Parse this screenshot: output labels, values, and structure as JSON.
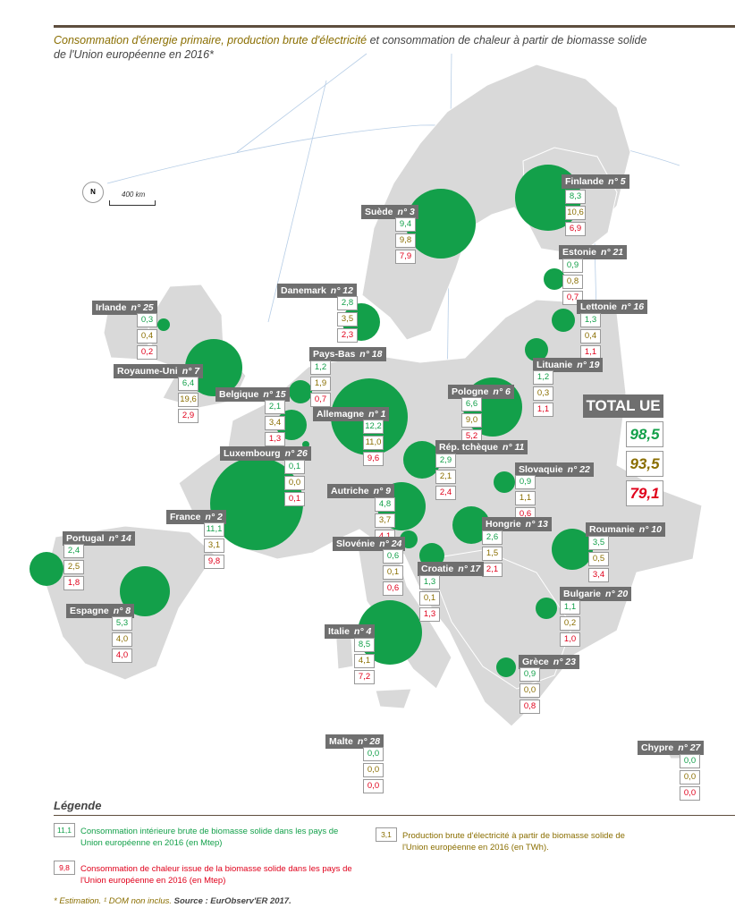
{
  "title": {
    "part1": "Consommation d'énergie primaire, production brute d'électricité",
    "part2": " et consommation de chaleur à partir de biomasse solide",
    "part3": "de l'Union européenne en 2016*"
  },
  "map": {
    "scale_label": "400 km",
    "north_label": "N"
  },
  "countries": [
    {
      "name": "Finlande",
      "rank": "n° 5",
      "values": [
        "8,3",
        "10,6",
        "6,9"
      ]
    },
    {
      "name": "Suède",
      "rank": "n° 3",
      "values": [
        "9,4",
        "9,8",
        "7,9"
      ]
    },
    {
      "name": "Estonie",
      "rank": "n° 21",
      "values": [
        "0,9",
        "0,8",
        "0,7"
      ]
    },
    {
      "name": "Lettonie",
      "rank": "n° 16",
      "values": [
        "1,3",
        "0,4",
        "1,1"
      ]
    },
    {
      "name": "Lituanie",
      "rank": "n° 19",
      "values": [
        "1,2",
        "0,3",
        "1,1"
      ]
    },
    {
      "name": "Danemark",
      "rank": "n° 12",
      "values": [
        "2,8",
        "3,5",
        "2,3"
      ]
    },
    {
      "name": "Irlande",
      "rank": "n° 25",
      "values": [
        "0,3",
        "0,4",
        "0,2"
      ]
    },
    {
      "name": "Royaume-Uni",
      "rank": "n° 7",
      "values": [
        "6,4",
        "19,6",
        "2,9"
      ]
    },
    {
      "name": "Pays-Bas",
      "rank": "n° 18",
      "values": [
        "1,2",
        "1,9",
        "0,7"
      ]
    },
    {
      "name": "Belgique",
      "rank": "n° 15",
      "values": [
        "2,1",
        "3,4",
        "1,3"
      ]
    },
    {
      "name": "Allemagne",
      "rank": "n° 1",
      "values": [
        "12,2",
        "11,0",
        "9,6"
      ]
    },
    {
      "name": "Pologne",
      "rank": "n° 6",
      "values": [
        "6,6",
        "9,0",
        "5,2"
      ]
    },
    {
      "name": "Luxembourg",
      "rank": "n° 26",
      "values": [
        "0,1",
        "0,0",
        "0,1"
      ]
    },
    {
      "name": "Rép. tchèque",
      "rank": "n° 11",
      "values": [
        "2,9",
        "2,1",
        "2,4"
      ]
    },
    {
      "name": "Slovaquie",
      "rank": "n° 22",
      "values": [
        "0,9",
        "1,1",
        "0,6"
      ]
    },
    {
      "name": "France",
      "rank": "n° 2",
      "values": [
        "11,1",
        "3,1",
        "9,8"
      ]
    },
    {
      "name": "Autriche",
      "rank": "n° 9",
      "values": [
        "4,8",
        "3,7",
        "4,1"
      ]
    },
    {
      "name": "Hongrie",
      "rank": "n° 13",
      "values": [
        "2,6",
        "1,5",
        "2,1"
      ]
    },
    {
      "name": "Roumanie",
      "rank": "n° 10",
      "values": [
        "3,5",
        "0,5",
        "3,4"
      ]
    },
    {
      "name": "Portugal",
      "rank": "n° 14",
      "values": [
        "2,4",
        "2,5",
        "1,8"
      ]
    },
    {
      "name": "Slovénie",
      "rank": "n° 24",
      "values": [
        "0,6",
        "0,1",
        "0,6"
      ]
    },
    {
      "name": "Croatie",
      "rank": "n° 17",
      "values": [
        "1,3",
        "0,1",
        "1,3"
      ]
    },
    {
      "name": "Espagne",
      "rank": "n° 8",
      "values": [
        "5,3",
        "4,0",
        "4,0"
      ]
    },
    {
      "name": "Bulgarie",
      "rank": "n° 20",
      "values": [
        "1,1",
        "0,2",
        "1,0"
      ]
    },
    {
      "name": "Italie",
      "rank": "n° 4",
      "values": [
        "8,5",
        "4,1",
        "7,2"
      ]
    },
    {
      "name": "Grèce",
      "rank": "n° 23",
      "values": [
        "0,9",
        "0,0",
        "0,8"
      ]
    },
    {
      "name": "Malte",
      "rank": "n° 28",
      "values": [
        "0,0",
        "0,0",
        "0,0"
      ]
    },
    {
      "name": "Chypre",
      "rank": "n° 27",
      "values": [
        "0,0",
        "0,0",
        "0,0"
      ]
    }
  ],
  "total": {
    "label": "TOTAL UE",
    "values": [
      "98,5",
      "93,5",
      "79,1"
    ]
  },
  "legend": {
    "title": "Légende",
    "items": [
      {
        "sample": "11,1",
        "text": "Consommation intérieure brute de biomasse solide dans les pays de Union européenne en 2016 (en Mtep)"
      },
      {
        "sample": "3,1",
        "text": "Production brute d'électricité à partir de biomasse solide de l'Union européenne en 2016 (en TWh)."
      },
      {
        "sample": "9,8",
        "text": "Consommation de chaleur issue de la biomasse solide dans les pays de l'Union européenne en 2016 (en Mtep)"
      }
    ]
  },
  "footnote": {
    "note": "* Estimation. ¹ DOM non inclus. ",
    "source": "Source : EurObserv'ER 2017."
  },
  "colors": {
    "consumption": "#13a04a",
    "electricity": "#8a6e00",
    "heat": "#e0001b",
    "land": "#d9d9d9",
    "label_bg": "#6f6f6f"
  }
}
